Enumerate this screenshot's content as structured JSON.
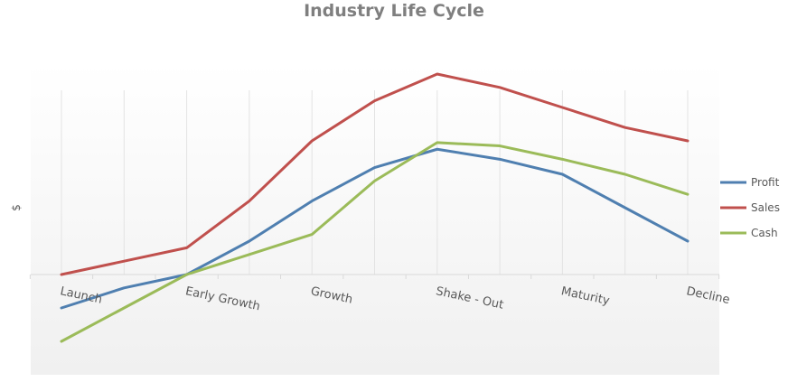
{
  "chart_data": {
    "type": "line",
    "title": "Industry Life Cycle",
    "xlabel": "",
    "ylabel": "$",
    "categories": [
      "Launch",
      "",
      "Early Growth",
      "",
      "Growth",
      "",
      "Shake - Out",
      "",
      "Maturity",
      "",
      "Decline"
    ],
    "x": [
      0,
      1,
      2,
      3,
      4,
      5,
      6,
      7,
      8,
      9,
      10
    ],
    "ylim": [
      -3,
      6
    ],
    "grid": true,
    "legend_position": "right",
    "series": [
      {
        "name": "Profit",
        "color": "#4f7fb0",
        "values": [
          -1.0,
          -0.4,
          0.0,
          1.0,
          2.2,
          3.2,
          3.75,
          3.45,
          3.0,
          2.0,
          1.0
        ]
      },
      {
        "name": "Sales",
        "color": "#c0504d",
        "values": [
          0.0,
          0.4,
          0.8,
          2.2,
          4.0,
          5.2,
          6.0,
          5.6,
          5.0,
          4.4,
          4.0
        ]
      },
      {
        "name": "Cash",
        "color": "#9bbb59",
        "values": [
          -2.0,
          -1.0,
          0.0,
          0.6,
          1.2,
          2.8,
          3.95,
          3.85,
          3.45,
          3.0,
          2.4
        ]
      }
    ]
  }
}
